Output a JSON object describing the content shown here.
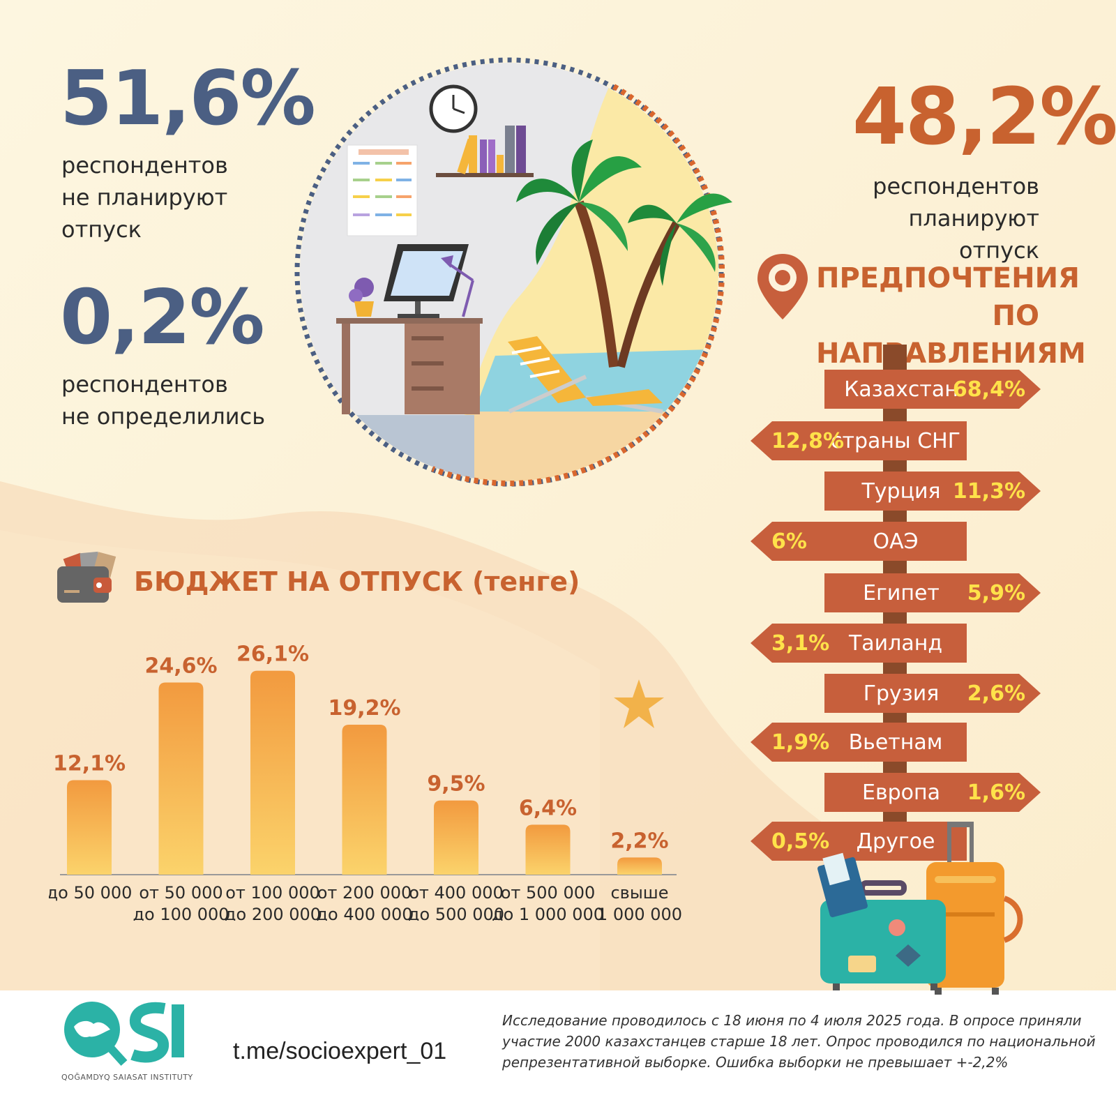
{
  "stats": {
    "not_planning": {
      "value": "51,6%",
      "text": [
        "респондентов",
        "не планируют",
        "отпуск"
      ]
    },
    "undecided": {
      "value": "0,2%",
      "text": [
        "респондентов",
        "не определились"
      ]
    },
    "planning": {
      "value": "48,2%",
      "text": [
        "респондентов",
        "планируют отпуск"
      ]
    }
  },
  "destinations": {
    "title": [
      "ПРЕДПОЧТЕНИЯ",
      "ПО НАПРАВЛЕНИЯМ"
    ],
    "items": [
      {
        "name": "Казахстан",
        "pct": "68,4%",
        "dir": "right"
      },
      {
        "name": "страны СНГ",
        "pct": "12,8%",
        "dir": "left"
      },
      {
        "name": "Турция",
        "pct": "11,3%",
        "dir": "right"
      },
      {
        "name": "ОАЭ",
        "pct": "6%",
        "dir": "left"
      },
      {
        "name": "Египет",
        "pct": "5,9%",
        "dir": "right"
      },
      {
        "name": "Таиланд",
        "pct": "3,1%",
        "dir": "left"
      },
      {
        "name": "Грузия",
        "pct": "2,6%",
        "dir": "right"
      },
      {
        "name": "Вьетнам",
        "pct": "1,9%",
        "dir": "left"
      },
      {
        "name": "Европа",
        "pct": "1,6%",
        "dir": "right"
      },
      {
        "name": "Другое",
        "pct": "0,5%",
        "dir": "left"
      }
    ]
  },
  "chart_data": {
    "type": "bar",
    "title": "БЮДЖЕТ НА ОТПУСК (тенге)",
    "categories": [
      [
        "до 50 000"
      ],
      [
        "от 50 000",
        "до 100 000"
      ],
      [
        "от 100 000",
        "до 200 000"
      ],
      [
        "от 200 000",
        "до 400 000"
      ],
      [
        "от 400 000",
        "до 500 000"
      ],
      [
        "от 500 000",
        "до 1 000 000"
      ],
      [
        "свыше",
        "1 000 000"
      ]
    ],
    "values": [
      12.1,
      24.6,
      26.1,
      19.2,
      9.5,
      6.4,
      2.2
    ],
    "value_labels": [
      "12,1%",
      "24,6%",
      "26,1%",
      "19,2%",
      "9,5%",
      "6,4%",
      "2,2%"
    ],
    "ylim": [
      0,
      30
    ],
    "colors": {
      "top": "#f29a3f",
      "bottom": "#fbd36b"
    }
  },
  "footer": {
    "url": "t.me/socioexpert_01",
    "logo_name": "QSI",
    "logo_sub": "QOĞAMDYQ SAIASAT INSTITUTY",
    "note": [
      "Исследование проводилось с 18 июня по 4 июля 2025 года. В опросе приняли",
      "участие 2000 казахстанцев старше 18 лет. Опрос проводился по национальной",
      "репрезентативной выборке. Ошибка выборки не превышает +-2,2%"
    ]
  }
}
